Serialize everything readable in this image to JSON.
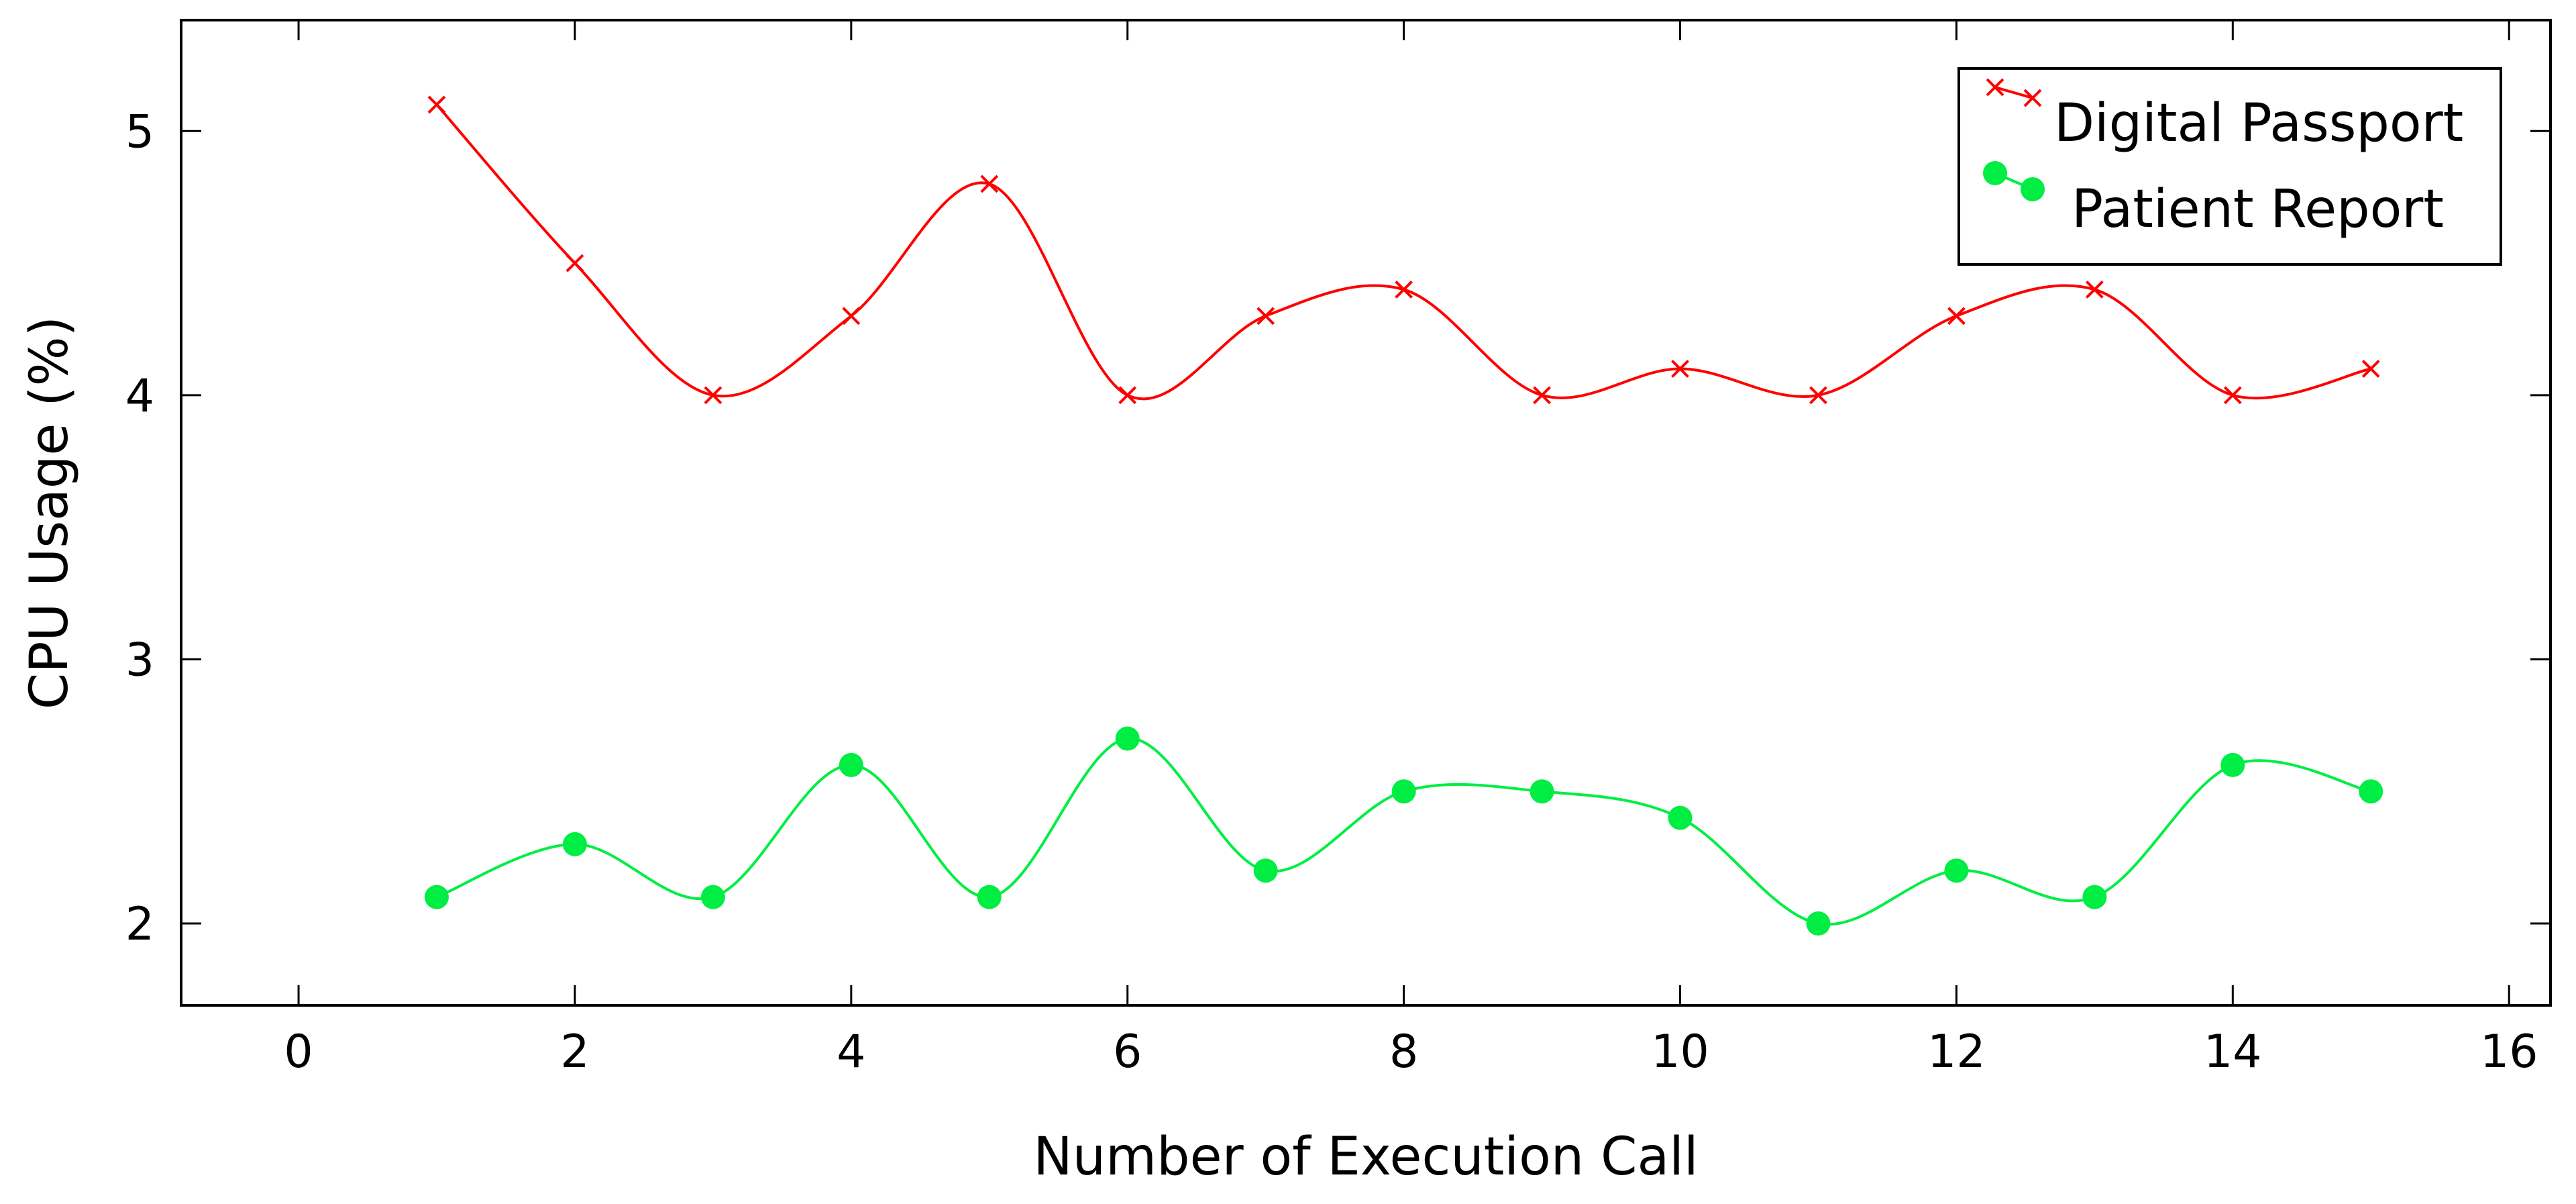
{
  "chart_data": {
    "type": "line",
    "title": "",
    "xlabel": "Number of Execution Call",
    "ylabel": "CPU Usage (%)",
    "xlim": [
      -0.85,
      16.3
    ],
    "ylim": [
      1.69,
      5.42
    ],
    "x_ticks": [
      "0",
      "2",
      "4",
      "6",
      "8",
      "10",
      "12",
      "14",
      "16"
    ],
    "y_ticks": [
      "2",
      "3",
      "4",
      "5"
    ],
    "grid": false,
    "smooth": true,
    "legend_position": "top-right",
    "x": [
      1,
      2,
      3,
      4,
      5,
      6,
      7,
      8,
      9,
      10,
      11,
      12,
      13,
      14,
      15
    ],
    "series": [
      {
        "name": "Digital Passport",
        "color": "#ff0000",
        "marker": "cross",
        "values": [
          5.1,
          4.5,
          4.0,
          4.3,
          4.8,
          4.0,
          4.3,
          4.4,
          4.0,
          4.1,
          4.0,
          4.3,
          4.4,
          4.0,
          4.1
        ]
      },
      {
        "name": "Patient Report",
        "color": "#00ee44",
        "marker": "circle",
        "values": [
          2.1,
          2.3,
          2.1,
          2.6,
          2.1,
          2.7,
          2.2,
          2.5,
          2.5,
          2.4,
          2.0,
          2.2,
          2.1,
          2.6,
          2.5
        ]
      }
    ]
  }
}
